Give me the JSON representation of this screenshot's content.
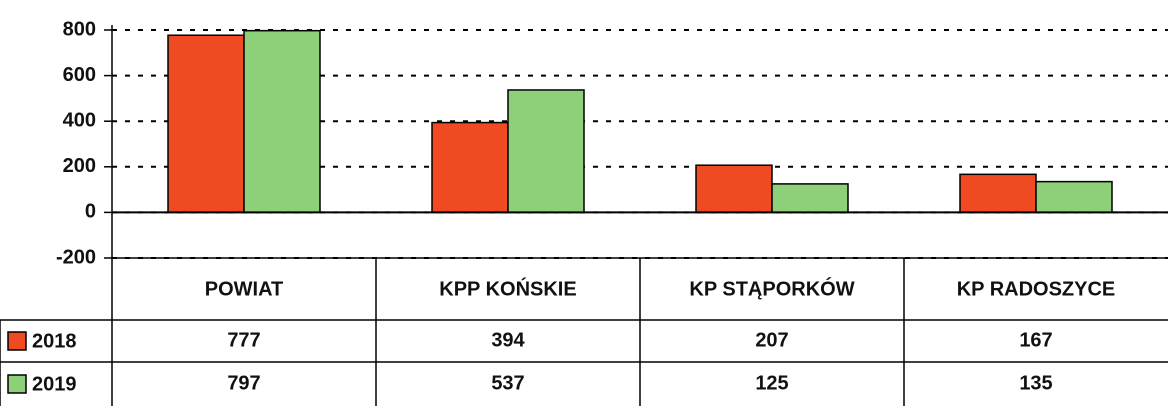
{
  "chart_data": {
    "type": "bar",
    "categories": [
      "POWIAT",
      "KPP KOŃSKIE",
      "KP STĄPORKÓW",
      "KP RADOSZYCE"
    ],
    "series": [
      {
        "name": "2018",
        "color": "#f04a23",
        "values": [
          777,
          394,
          207,
          167
        ]
      },
      {
        "name": "2019",
        "color": "#8ed07a",
        "values": [
          797,
          537,
          125,
          135
        ]
      }
    ],
    "ylim": [
      -200,
      800
    ],
    "yticks": [
      -200,
      0,
      200,
      400,
      600,
      800
    ],
    "grid": true
  }
}
